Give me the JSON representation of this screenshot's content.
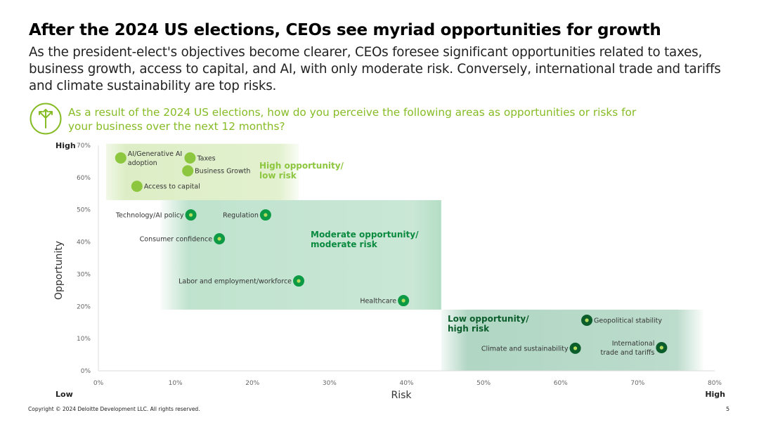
{
  "header": {
    "title": "After the 2024 US elections, CEOs see myriad opportunities for growth",
    "subtitle": "As the president-elect's objectives become clearer, CEOs foresee significant opportunities related to taxes, business growth, access to capital, and AI, with only moderate risk. Conversely, international trade and tariffs and climate sustainability are top risks.",
    "question": "As a result of the 2024 US elections, how do you perceive the following areas as opportunities or risks for your business over the next 12 months?",
    "question_icon": "arrows-split-icon"
  },
  "footer": {
    "copyright": "Copyright © 2024 Deloitte Development LLC. All rights reserved.",
    "page_number": "5"
  },
  "colors": {
    "light_green": "#8dc63f",
    "dark_green": "#0a7a3a",
    "darkest_green": "#0b5d2b",
    "zone_light": "#e4efc4",
    "zone_mid": "#c7e6d3"
  },
  "chart_data": {
    "type": "scatter",
    "xlabel": "Risk",
    "ylabel": "Opportunity",
    "xlim": [
      0,
      80
    ],
    "ylim": [
      0,
      70
    ],
    "x_ticks": [
      "0%",
      "10%",
      "20%",
      "30%",
      "40%",
      "50%",
      "60%",
      "70%",
      "80%"
    ],
    "y_ticks": [
      "0%",
      "10%",
      "20%",
      "30%",
      "40%",
      "50%",
      "60%",
      "70%"
    ],
    "x_low_label": "Low",
    "x_high_label": "High",
    "y_low_label": "Low",
    "y_high_label": "High",
    "zones": [
      {
        "label": "High opportunity/ low risk",
        "line1": "High opportunity/",
        "line2": "low risk",
        "x": [
          1,
          26
        ],
        "y": [
          53,
          70.5
        ],
        "color": "#8dc63f"
      },
      {
        "label": "Moderate opportunity/ moderate risk",
        "line1": "Moderate opportunity/",
        "line2": "moderate risk",
        "x": [
          8,
          44.5
        ],
        "y": [
          19,
          53
        ],
        "color": "#0a8a3f"
      },
      {
        "label": "Low opportunity/ high risk",
        "line1": "Low opportunity/",
        "line2": "high risk",
        "x": [
          44.5,
          78.5
        ],
        "y": [
          0,
          19
        ],
        "color": "#0b5d2b"
      }
    ],
    "points": [
      {
        "name": "AI/Generative AI adoption",
        "lines": [
          "AI/Generative AI",
          "adoption"
        ],
        "x": 2.9,
        "y": 66.1,
        "zone": 0,
        "side": "right"
      },
      {
        "name": "Taxes",
        "lines": [
          "Taxes"
        ],
        "x": 11.9,
        "y": 66.1,
        "zone": 0,
        "side": "right"
      },
      {
        "name": "Business Growth",
        "lines": [
          "Business Growth"
        ],
        "x": 11.6,
        "y": 62.1,
        "zone": 0,
        "side": "right"
      },
      {
        "name": "Access to capital",
        "lines": [
          "Access to capital"
        ],
        "x": 5.0,
        "y": 57.3,
        "zone": 0,
        "side": "right"
      },
      {
        "name": "Technology/AI policy",
        "lines": [
          "Technology/AI policy"
        ],
        "x": 12.0,
        "y": 48.4,
        "zone": 1,
        "side": "left"
      },
      {
        "name": "Regulation",
        "lines": [
          "Regulation"
        ],
        "x": 21.7,
        "y": 48.4,
        "zone": 1,
        "side": "left"
      },
      {
        "name": "Consumer confidence",
        "lines": [
          "Consumer confidence"
        ],
        "x": 15.7,
        "y": 41.0,
        "zone": 1,
        "side": "left"
      },
      {
        "name": "Labor and employment/workforce",
        "lines": [
          "Labor and employment/workforce"
        ],
        "x": 26.0,
        "y": 27.9,
        "zone": 1,
        "side": "left"
      },
      {
        "name": "Healthcare",
        "lines": [
          "Healthcare"
        ],
        "x": 39.6,
        "y": 21.8,
        "zone": 1,
        "side": "left"
      },
      {
        "name": "Geopolitical stability",
        "lines": [
          "Geopolitical stability"
        ],
        "x": 63.4,
        "y": 15.7,
        "zone": 2,
        "side": "right"
      },
      {
        "name": "Climate and sustainability",
        "lines": [
          "Climate and sustainability"
        ],
        "x": 61.9,
        "y": 7.0,
        "zone": 2,
        "side": "left"
      },
      {
        "name": "International trade and tariffs",
        "lines": [
          "International",
          "trade and tariffs"
        ],
        "x": 73.1,
        "y": 7.2,
        "zone": 2,
        "side": "left"
      }
    ]
  }
}
